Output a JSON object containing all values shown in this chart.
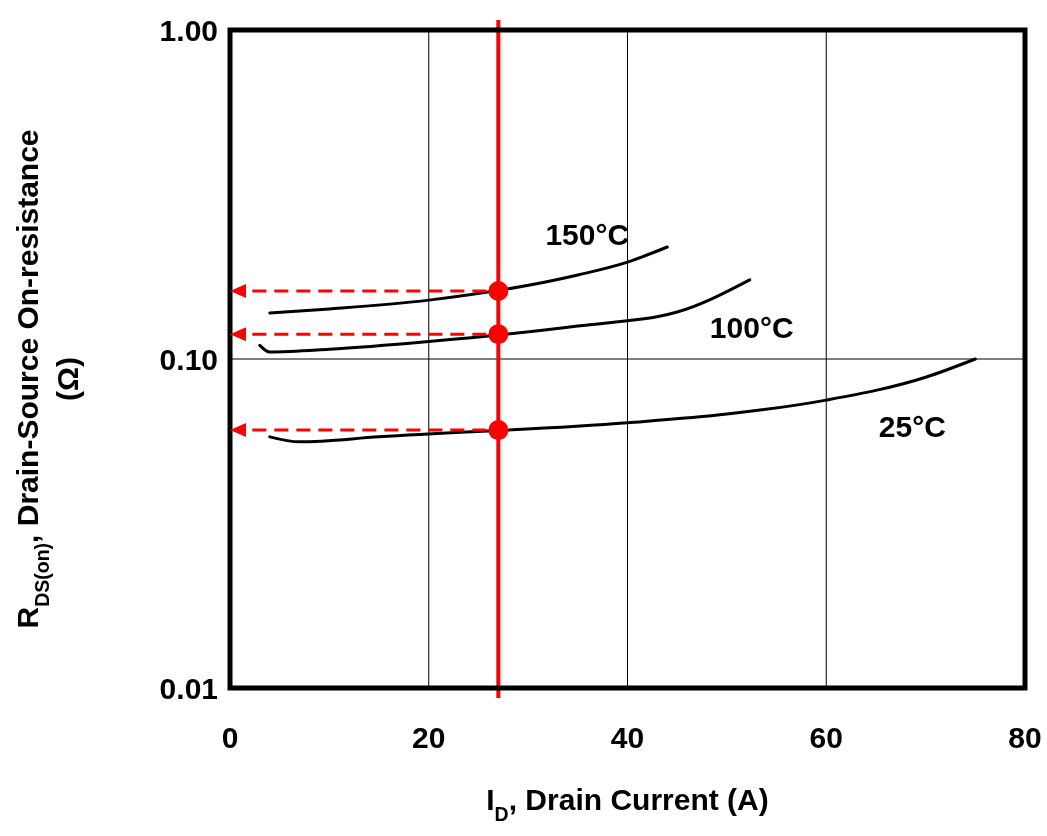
{
  "chart_data": {
    "type": "line",
    "xlabel": "I$_{D}$, Drain Current (A)",
    "ylabel": "R$_{DS(on)}$, Drain-Source On-resistance\n(Ω)",
    "xlim": [
      0,
      80
    ],
    "xticks": [
      0,
      20,
      40,
      60,
      80
    ],
    "ylim": [
      0.01,
      1
    ],
    "yticks": [
      {
        "value": 0.01,
        "label": "0.01"
      },
      {
        "value": 0.1,
        "label": "0.10"
      },
      {
        "value": 1,
        "label": "1.00"
      }
    ],
    "log": "y",
    "grid": true,
    "line_style": "solid",
    "series": [
      {
        "name": "150°C",
        "color": "#000000",
        "x": [
          4,
          10,
          20,
          35,
          40,
          44
        ],
        "values": [
          0.138,
          0.142,
          0.151,
          0.18,
          0.197,
          0.219
        ]
      },
      {
        "name": "100°C",
        "color": "#000000",
        "x": [
          3,
          4,
          10,
          20,
          35,
          45,
          52.3
        ],
        "values": [
          0.11,
          0.105,
          0.107,
          0.113,
          0.126,
          0.139,
          0.174
        ]
      },
      {
        "name": "25°C",
        "color": "#000000",
        "x": [
          4,
          7,
          15,
          40,
          50,
          60,
          70,
          75
        ],
        "values": [
          0.058,
          0.056,
          0.058,
          0.064,
          0.068,
          0.075,
          0.088,
          0.1
        ]
      },
      {
        "type": "scatter",
        "marker": "circle",
        "color": "#ff0000",
        "x": [
          27,
          27,
          27
        ],
        "values": [
          0.161,
          0.119,
          0.0608
        ]
      }
    ],
    "ref_lines": [
      {
        "axis": "x",
        "value": 27,
        "color": "#ff0000"
      }
    ]
  }
}
